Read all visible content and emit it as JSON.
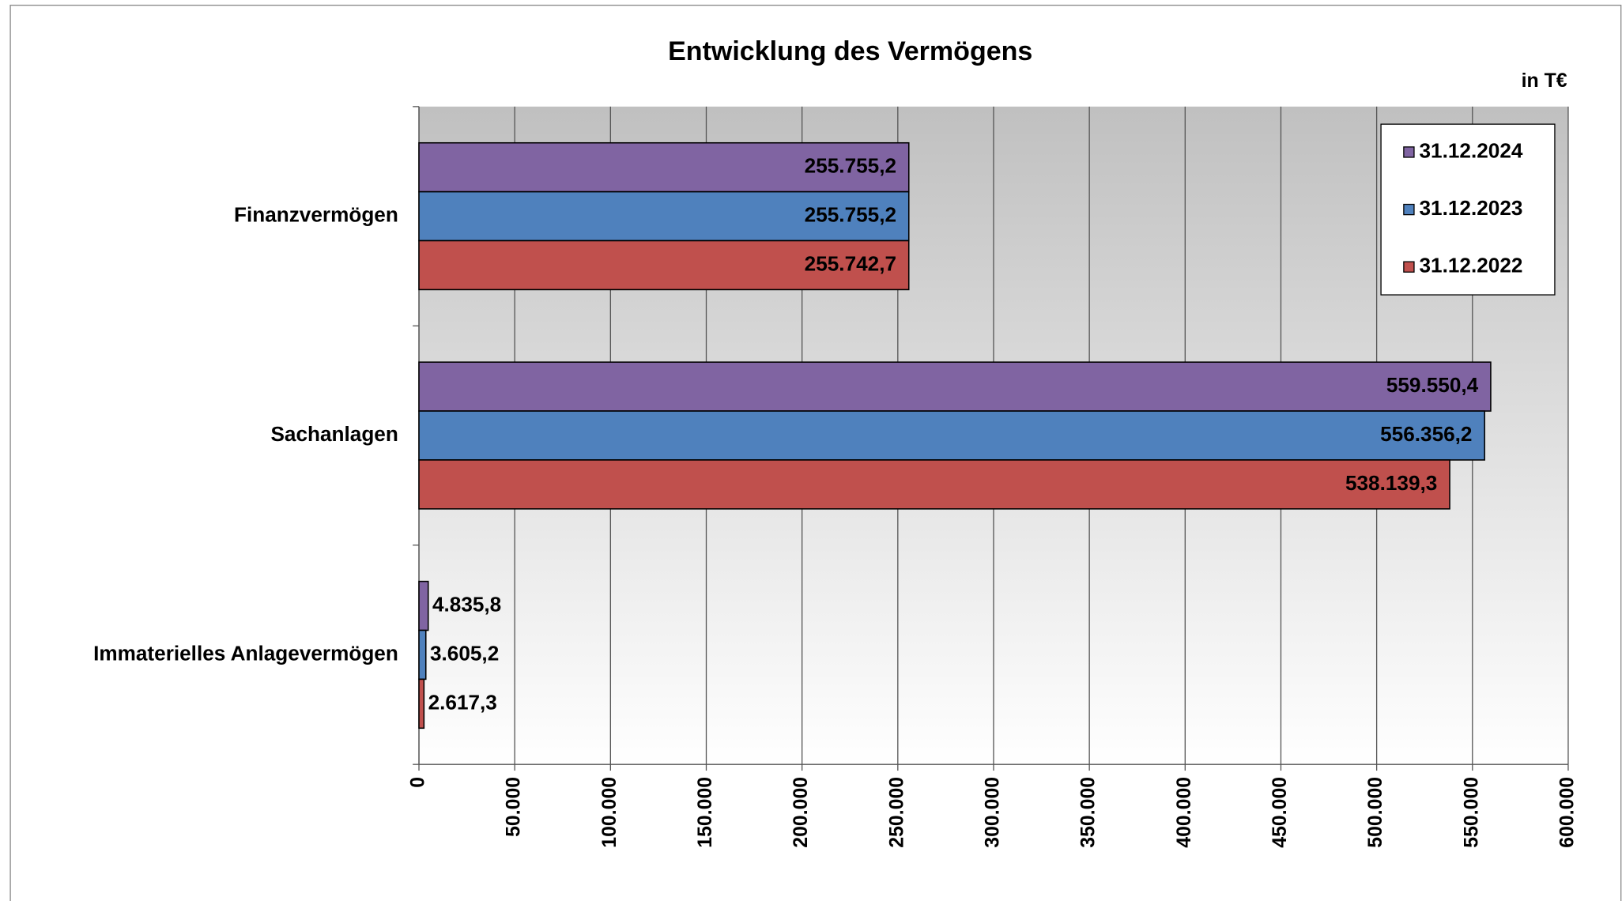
{
  "chart_data": {
    "type": "hbar",
    "title": "Entwicklung des Vermögens",
    "unit_label": "in T€",
    "categories": [
      "Finanzvermögen",
      "Sachanlagen",
      "Immaterielles Anlagevermögen"
    ],
    "series": [
      {
        "name": "31.12.2024",
        "color": "#8064a2",
        "values": [
          255755.2,
          559550.4,
          4835.8
        ],
        "value_labels": [
          "255.755,2",
          "559.550,4",
          "4.835,8"
        ]
      },
      {
        "name": "31.12.2023",
        "color": "#4f81bd",
        "values": [
          255755.2,
          556356.2,
          3605.2
        ],
        "value_labels": [
          "255.755,2",
          "556.356,2",
          "3.605,2"
        ]
      },
      {
        "name": "31.12.2022",
        "color": "#c0504d",
        "values": [
          255742.7,
          538139.3,
          2617.3
        ],
        "value_labels": [
          "255.742,7",
          "538.139,3",
          "2.617,3"
        ]
      }
    ],
    "xlim": [
      0,
      600000
    ],
    "xticks": [
      0,
      {
        "value": 50000,
        "label": "50.000"
      },
      {
        "value": 100000,
        "label": "100.000"
      },
      {
        "value": 150000,
        "label": "150.000"
      },
      {
        "value": 200000,
        "label": "200.000"
      },
      {
        "value": 250000,
        "label": "250.000"
      },
      {
        "value": 300000,
        "label": "300.000"
      },
      {
        "value": 350000,
        "label": "350.000"
      },
      {
        "value": 400000,
        "label": "400.000"
      },
      {
        "value": 450000,
        "label": "450.000"
      },
      {
        "value": 500000,
        "label": "500.000"
      },
      {
        "value": 550000,
        "label": "550.000"
      },
      {
        "value": 600000,
        "label": "600.000"
      }
    ],
    "grid": true,
    "legend": "top-right"
  }
}
